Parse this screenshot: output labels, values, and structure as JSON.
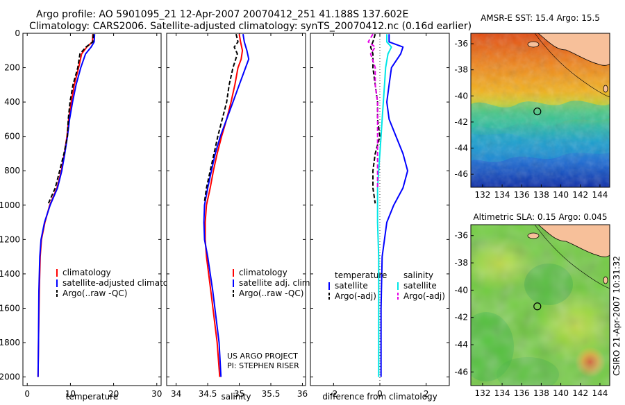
{
  "header": {
    "line1": "Argo profile: AO 5901095_21 12-Apr-2007 20070412_251 41.188S 137.602E",
    "line2": "Climatology: CARS2006. Satellite-adjusted climatology: synTS_20070412.nc (0.16d earlier)"
  },
  "colors": {
    "climatology": "#ff0000",
    "satellite": "#0000ff",
    "argo": "#000000",
    "sal_satellite": "#00e6e6",
    "sal_argo": "#e600e6",
    "land": "#f7c09a"
  },
  "chart_data": [
    {
      "type": "line",
      "xlabel": "temperature",
      "xlim": [
        -1,
        31
      ],
      "xticks": [
        0,
        10,
        20,
        30
      ],
      "ylim": [
        0,
        2050
      ],
      "yticks": [
        0,
        200,
        400,
        600,
        800,
        1000,
        1200,
        1400,
        1600,
        1800,
        2000
      ],
      "yreversed": true,
      "legend": [
        "climatology",
        "satellite-adjusted climatology",
        "Argo(..raw -QC)"
      ],
      "series": [
        {
          "name": "climatology",
          "style": "solid",
          "color": "#ff0000",
          "x": [
            15.2,
            15.1,
            13.8,
            12.6,
            11.9,
            10.9,
            10.2,
            9.6,
            9.2,
            8.6,
            7.9,
            6.9,
            5.2,
            4.1,
            3.3,
            3.0,
            2.8,
            2.6,
            2.5
          ],
          "y": [
            5,
            50,
            80,
            120,
            200,
            300,
            400,
            500,
            600,
            700,
            800,
            900,
            1000,
            1100,
            1200,
            1300,
            1500,
            1800,
            2000
          ]
        },
        {
          "name": "satellite-adjusted climatology",
          "style": "solid",
          "color": "#0000ff",
          "x": [
            15.6,
            15.5,
            14.8,
            13.5,
            12.4,
            11.3,
            10.5,
            9.8,
            9.3,
            8.7,
            8.0,
            7.0,
            5.3,
            4.0,
            3.2,
            2.9,
            2.7,
            2.6,
            2.5
          ],
          "y": [
            5,
            50,
            80,
            120,
            200,
            300,
            400,
            500,
            600,
            700,
            800,
            900,
            1000,
            1100,
            1200,
            1300,
            1500,
            1800,
            2000
          ]
        },
        {
          "name": "Argo(..raw -QC)",
          "style": "dashed",
          "color": "#000000",
          "x": [
            15.3,
            15.2,
            13.6,
            12.2,
            11.7,
            10.6,
            9.9,
            9.5,
            9.3,
            8.5,
            7.5,
            6.5,
            4.9
          ],
          "y": [
            5,
            50,
            80,
            120,
            200,
            300,
            400,
            500,
            600,
            700,
            800,
            900,
            990
          ]
        }
      ],
      "annotations": []
    },
    {
      "type": "line",
      "xlabel": "salinity",
      "xlim": [
        33.85,
        36.05
      ],
      "xticks": [
        34,
        34.5,
        35,
        35.5,
        36
      ],
      "ylim": [
        0,
        2050
      ],
      "yreversed": true,
      "legend": [
        "climatology",
        "satellite adj. clim.",
        "Argo(..raw -QC)"
      ],
      "series": [
        {
          "name": "climatology",
          "style": "solid",
          "color": "#ff0000",
          "x": [
            35.0,
            35.02,
            35.05,
            35.03,
            34.98,
            34.93,
            34.87,
            34.8,
            34.72,
            34.65,
            34.59,
            34.54,
            34.48,
            34.46,
            34.46,
            34.48,
            34.55,
            34.65,
            34.69
          ],
          "y": [
            5,
            50,
            100,
            150,
            200,
            300,
            400,
            500,
            600,
            700,
            800,
            900,
            1000,
            1100,
            1200,
            1300,
            1500,
            1800,
            2000
          ]
        },
        {
          "name": "satellite adj. clim.",
          "style": "solid",
          "color": "#0000ff",
          "x": [
            35.06,
            35.08,
            35.12,
            35.15,
            35.1,
            35.0,
            34.9,
            34.8,
            34.7,
            34.62,
            34.56,
            34.5,
            34.45,
            34.44,
            34.45,
            34.5,
            34.58,
            34.68,
            34.71
          ],
          "y": [
            5,
            50,
            100,
            150,
            200,
            300,
            400,
            500,
            600,
            700,
            800,
            900,
            1000,
            1100,
            1200,
            1300,
            1500,
            1800,
            2000
          ]
        },
        {
          "name": "Argo(..raw -QC)",
          "style": "dashed",
          "color": "#000000",
          "x": [
            34.95,
            34.98,
            34.92,
            34.97,
            34.9,
            34.84,
            34.8,
            34.73,
            34.66,
            34.6,
            34.54,
            34.48,
            34.45
          ],
          "y": [
            5,
            50,
            80,
            120,
            200,
            300,
            400,
            500,
            600,
            700,
            800,
            900,
            980
          ]
        }
      ],
      "annotations": [
        "US ARGO PROJECT",
        "PI: STEPHEN RISER"
      ]
    },
    {
      "type": "line",
      "xlabel": "difference from climatology",
      "xlim": [
        -3,
        3
      ],
      "xticks": [
        -2,
        0,
        2
      ],
      "ylim": [
        0,
        2050
      ],
      "yreversed": true,
      "legend_temperature": [
        "temperature",
        "satellite",
        "Argo(-adj)"
      ],
      "legend_salinity": [
        "salinity",
        "satellite",
        "Argo(-adj)"
      ],
      "series": [
        {
          "name": "temperature satellite",
          "style": "solid",
          "color": "#0000ff",
          "x": [
            0.4,
            0.4,
            1.0,
            0.9,
            0.5,
            0.4,
            0.3,
            0.4,
            0.7,
            1.0,
            1.2,
            1.0,
            0.6,
            0.3,
            0.1,
            0.05,
            0.05
          ],
          "y": [
            5,
            50,
            80,
            120,
            200,
            300,
            400,
            500,
            600,
            700,
            800,
            900,
            1000,
            1100,
            1300,
            1600,
            2000
          ]
        },
        {
          "name": "temperature Argo(-adj)",
          "style": "dashed",
          "color": "#000000",
          "x": [
            -0.2,
            -0.3,
            -0.4,
            -0.3,
            -0.3,
            -0.2,
            -0.1,
            -0.1,
            0.0,
            -0.2,
            -0.3,
            -0.3,
            -0.2
          ],
          "y": [
            5,
            50,
            80,
            120,
            200,
            300,
            400,
            500,
            600,
            700,
            800,
            900,
            990
          ]
        },
        {
          "name": "salinity satellite",
          "style": "solid",
          "color": "#00e6e6",
          "x": [
            0.3,
            0.3,
            0.5,
            0.35,
            0.25,
            0.2,
            0.15,
            0.1,
            0.05,
            0.0,
            -0.05,
            -0.1,
            -0.1,
            -0.1,
            -0.05,
            -0.05,
            -0.05
          ],
          "y": [
            5,
            50,
            80,
            120,
            200,
            300,
            400,
            500,
            600,
            700,
            800,
            900,
            1000,
            1100,
            1300,
            1600,
            2000
          ]
        },
        {
          "name": "salinity Argo(-adj)",
          "style": "dashed",
          "color": "#e600e6",
          "x": [
            -0.3,
            -0.5,
            -0.2,
            -0.4,
            -0.2,
            -0.2,
            -0.1,
            -0.1,
            -0.1,
            -0.1,
            -0.1,
            -0.1
          ],
          "y": [
            5,
            50,
            80,
            120,
            200,
            300,
            400,
            500,
            600,
            700,
            800,
            900
          ]
        }
      ],
      "annotations": []
    }
  ],
  "maps": [
    {
      "title": "AMSR-E SST: 15.4 Argo: 15.5",
      "xticks": [
        "132",
        "134",
        "136",
        "138",
        "140",
        "142",
        "144"
      ],
      "yticks": [
        "-36",
        "-38",
        "-40",
        "-42",
        "-44",
        "-46"
      ],
      "marker_lon": 137.6,
      "marker_lat": -41.19
    },
    {
      "title": "Altimetric SLA: 0.15 Argo: 0.045",
      "xticks": [
        "132",
        "134",
        "136",
        "138",
        "140",
        "142",
        "144"
      ],
      "yticks": [
        "-36",
        "-38",
        "-40",
        "-42",
        "-44",
        "-46"
      ],
      "marker_lon": 137.6,
      "marker_lat": -41.19
    }
  ],
  "side_stamp": "CSIRO 21-Apr-2007 10:31:32"
}
